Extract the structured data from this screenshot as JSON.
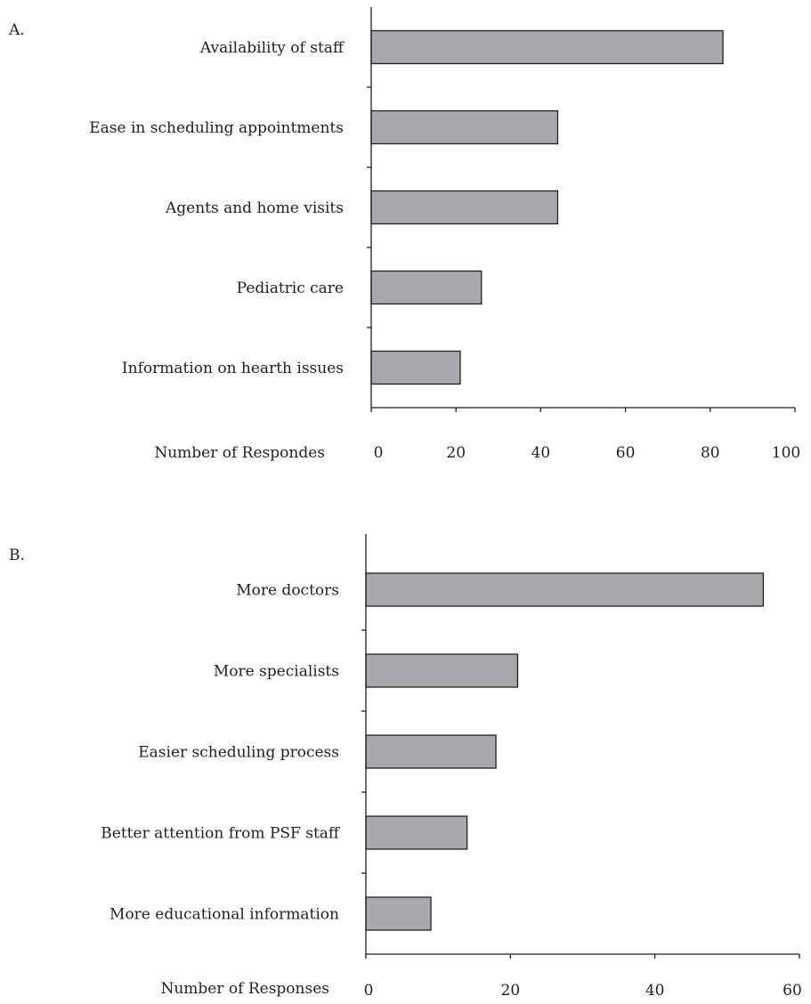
{
  "chart_data": [
    {
      "type": "bar",
      "orientation": "horizontal",
      "panel_label": "A.",
      "categories": [
        "Availability of staff",
        "Ease in scheduling appointments",
        "Agents and home visits",
        "Pediatric care",
        "Information on hearth issues"
      ],
      "values": [
        83,
        44,
        44,
        26,
        21
      ],
      "xlabel": "Number of Respondes",
      "xlim": [
        0,
        100
      ],
      "xticks": [
        "0",
        "20",
        "40",
        "60",
        "80",
        "100"
      ],
      "bar_color": "#a7a9ac",
      "grid": false
    },
    {
      "type": "bar",
      "orientation": "horizontal",
      "panel_label": "B.",
      "categories": [
        "More doctors",
        "More specialists",
        "Easier scheduling process",
        "Better attention from PSF staff",
        "More educational information"
      ],
      "values": [
        55,
        21,
        18,
        14,
        9
      ],
      "xlabel": "Number of Responses",
      "xlim": [
        0,
        60
      ],
      "xticks": [
        "0",
        "20",
        "40",
        "60"
      ],
      "bar_color": "#a7a9ac",
      "grid": false
    }
  ]
}
